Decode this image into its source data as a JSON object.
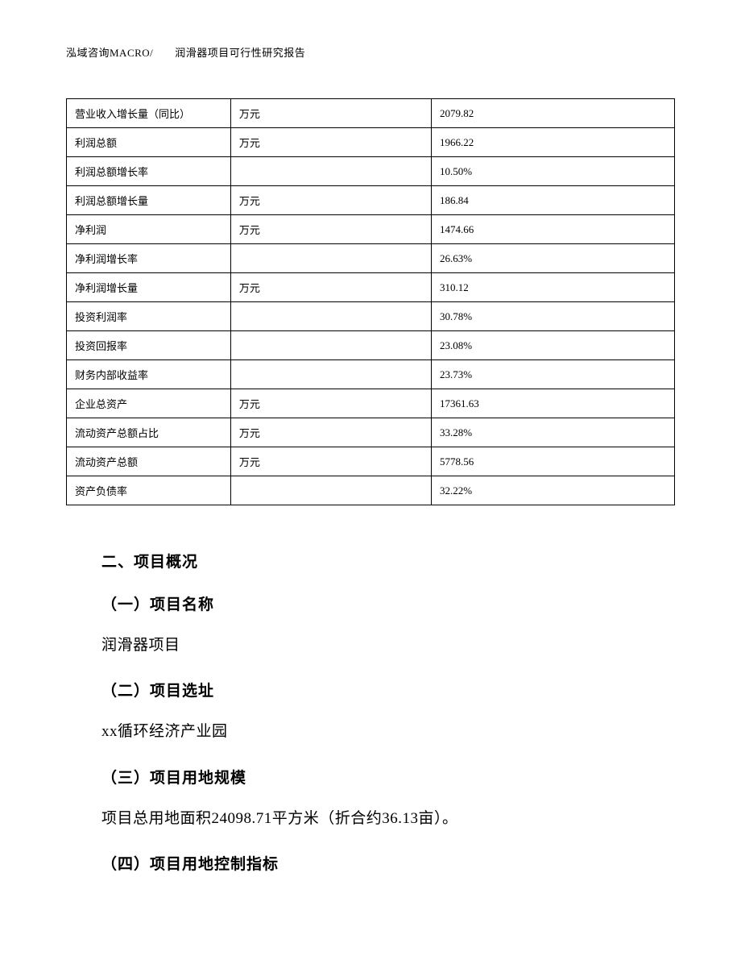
{
  "header": {
    "text": "泓域咨询MACRO/　　润滑器项目可行性研究报告"
  },
  "table": {
    "rows": [
      {
        "label": "营业收入增长量（同比）",
        "unit": "万元",
        "value": "2079.82"
      },
      {
        "label": "利润总额",
        "unit": "万元",
        "value": "1966.22"
      },
      {
        "label": "利润总额增长率",
        "unit": "",
        "value": "10.50%"
      },
      {
        "label": "利润总额增长量",
        "unit": "万元",
        "value": "186.84"
      },
      {
        "label": "净利润",
        "unit": "万元",
        "value": "1474.66"
      },
      {
        "label": "净利润增长率",
        "unit": "",
        "value": "26.63%"
      },
      {
        "label": "净利润增长量",
        "unit": "万元",
        "value": "310.12"
      },
      {
        "label": "投资利润率",
        "unit": "",
        "value": "30.78%"
      },
      {
        "label": "投资回报率",
        "unit": "",
        "value": "23.08%"
      },
      {
        "label": "财务内部收益率",
        "unit": "",
        "value": "23.73%"
      },
      {
        "label": "企业总资产",
        "unit": "万元",
        "value": "17361.63"
      },
      {
        "label": "流动资产总额占比",
        "unit": "万元",
        "value": "33.28%"
      },
      {
        "label": "流动资产总额",
        "unit": "万元",
        "value": "5778.56"
      },
      {
        "label": "资产负债率",
        "unit": "",
        "value": "32.22%"
      }
    ]
  },
  "sections": {
    "main_title": "二、项目概况",
    "sub1_title": "（一）项目名称",
    "sub1_text": "润滑器项目",
    "sub2_title": "（二）项目选址",
    "sub2_text": "xx循环经济产业园",
    "sub3_title": "（三）项目用地规模",
    "sub3_text": "项目总用地面积24098.71平方米（折合约36.13亩）。",
    "sub4_title": "（四）项目用地控制指标"
  }
}
